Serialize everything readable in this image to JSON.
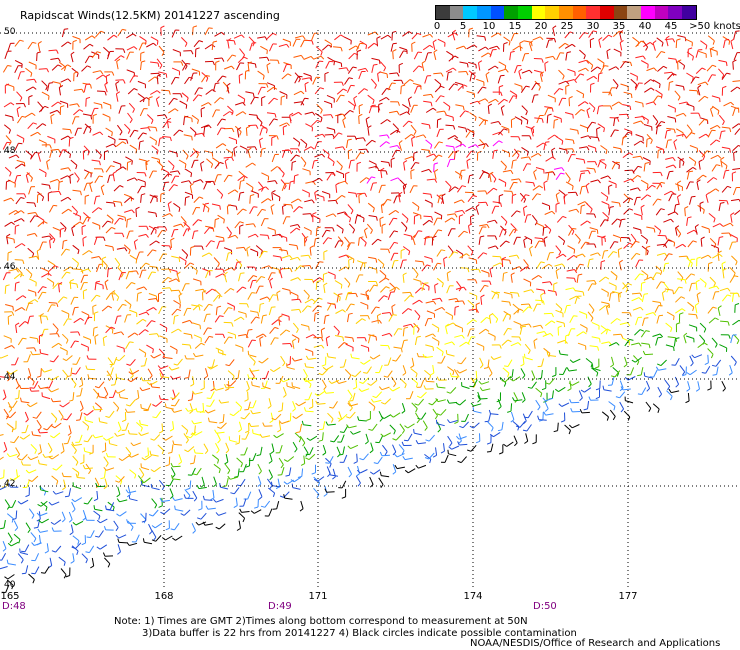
{
  "title": "Rapidscat Winds(12.5KM) 20141227 ascending",
  "legend": {
    "colors": [
      "#3c3c3c",
      "#8c8c8c",
      "#00c8ff",
      "#0096ff",
      "#0050ff",
      "#00a000",
      "#00d000",
      "#ffff00",
      "#ffd000",
      "#ff9000",
      "#ff6000",
      "#ff3030",
      "#e00000",
      "#8b4513",
      "#c0a080",
      "#ff00ff",
      "#c000c0",
      "#8000c0",
      "#4000a0"
    ],
    "labels": [
      "0",
      "5",
      "10",
      "15",
      "20",
      "25",
      "30",
      "35",
      "40",
      "45",
      ">50 knots"
    ]
  },
  "latitudes": [
    "50",
    "48",
    "46",
    "44",
    "42",
    "40"
  ],
  "longitudes": [
    "165",
    "168",
    "171",
    "174",
    "177"
  ],
  "times": [
    "D:48",
    "D:49",
    "D:50"
  ],
  "notes": {
    "line1": "Note: 1) Times are GMT 2)Times along bottom correspond to measurement at 50N",
    "line2": "3)Data buffer is 22 hrs from 20141227 4) Black circles indicate possible contamination"
  },
  "credit": "NOAA/NESDIS/Office of Research and Applications"
}
